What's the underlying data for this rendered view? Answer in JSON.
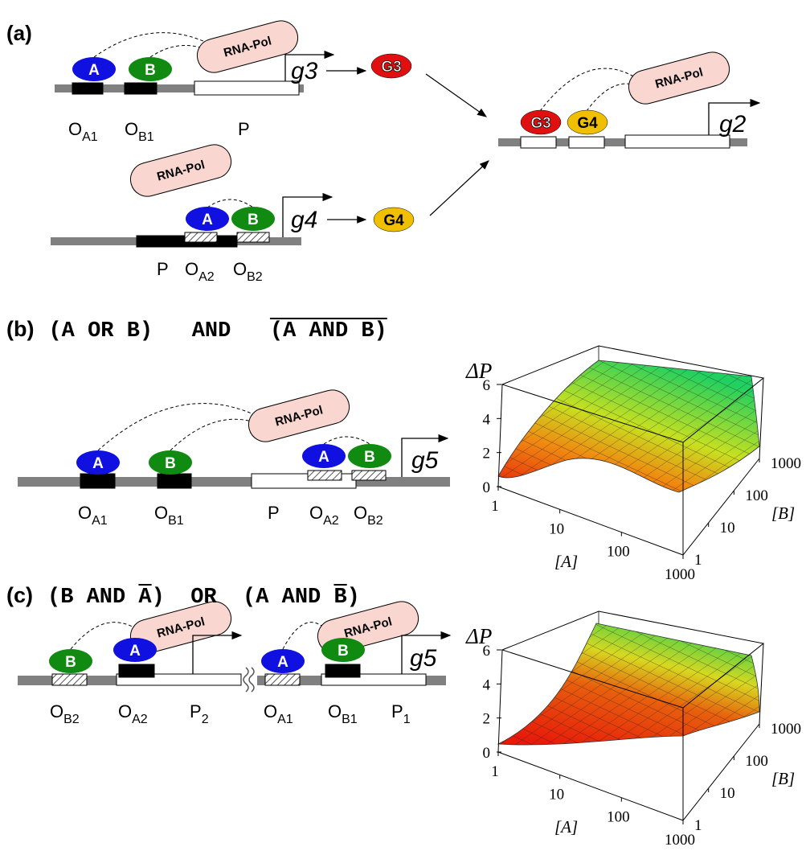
{
  "panel_a": {
    "label": "(a)",
    "gene1": {
      "proteins": [
        "A",
        "B"
      ],
      "operators": [
        {
          "main": "O",
          "sub": "A1"
        },
        {
          "main": "O",
          "sub": "B1"
        }
      ],
      "promoter": "P",
      "polymerase": "RNA-Pol",
      "gene": "g3",
      "product": "G3"
    },
    "gene2": {
      "proteins": [
        "A",
        "B"
      ],
      "operators": [
        {
          "main": "O",
          "sub": "A2"
        },
        {
          "main": "O",
          "sub": "B2"
        }
      ],
      "promoter": "P",
      "polymerase": "RNA-Pol",
      "gene": "g4",
      "product": "G4"
    },
    "target": {
      "proteins": [
        "G3",
        "G4"
      ],
      "polymerase": "RNA-Pol",
      "gene": "g2"
    }
  },
  "panel_b": {
    "label": "(b)",
    "expression": [
      {
        "text": "(A OR B)",
        "overline": false
      },
      {
        "text": "   AND   ",
        "overline": false
      },
      {
        "text": "(A AND B)",
        "overline": true
      }
    ],
    "diagram": {
      "proteins": [
        "A",
        "B",
        "A",
        "B"
      ],
      "operators": [
        {
          "main": "O",
          "sub": "A1"
        },
        {
          "main": "O",
          "sub": "B1"
        },
        {
          "main": "O",
          "sub": "A2"
        },
        {
          "main": "O",
          "sub": "B2"
        }
      ],
      "promoter": "P",
      "polymerase": "RNA-Pol",
      "gene": "g5"
    },
    "plot": {
      "z_label": "ΔP",
      "x_label": "[A]",
      "y_label": "[B]",
      "z_ticks": [
        0,
        2,
        4,
        6
      ],
      "x_ticks": [
        1,
        10,
        100,
        1000
      ],
      "y_ticks": [
        1,
        10,
        100,
        1000
      ]
    }
  },
  "panel_c": {
    "label": "(c)",
    "expression": [
      {
        "text": "(B AND ",
        "overline": false
      },
      {
        "text": "A",
        "overline": true
      },
      {
        "text": ")  OR  (A AND ",
        "overline": false
      },
      {
        "text": "B",
        "overline": true
      },
      {
        "text": ")",
        "overline": false
      }
    ],
    "left": {
      "proteins": [
        "B",
        "A"
      ],
      "operators": [
        {
          "main": "O",
          "sub": "B2"
        },
        {
          "main": "O",
          "sub": "A2"
        }
      ],
      "promoter": {
        "main": "P",
        "sub": "2"
      },
      "polymerase": "RNA-Pol"
    },
    "right": {
      "proteins": [
        "A",
        "B"
      ],
      "operators": [
        {
          "main": "O",
          "sub": "A1"
        },
        {
          "main": "O",
          "sub": "B1"
        }
      ],
      "promoter": {
        "main": "P",
        "sub": "1"
      },
      "polymerase": "RNA-Pol",
      "gene": "g5"
    },
    "plot": {
      "z_label": "ΔP",
      "x_label": "[A]",
      "y_label": "[B]",
      "z_ticks": [
        0,
        2,
        4,
        6
      ],
      "x_ticks": [
        1,
        10,
        100,
        1000
      ],
      "y_ticks": [
        1,
        10,
        100,
        1000
      ]
    }
  }
}
